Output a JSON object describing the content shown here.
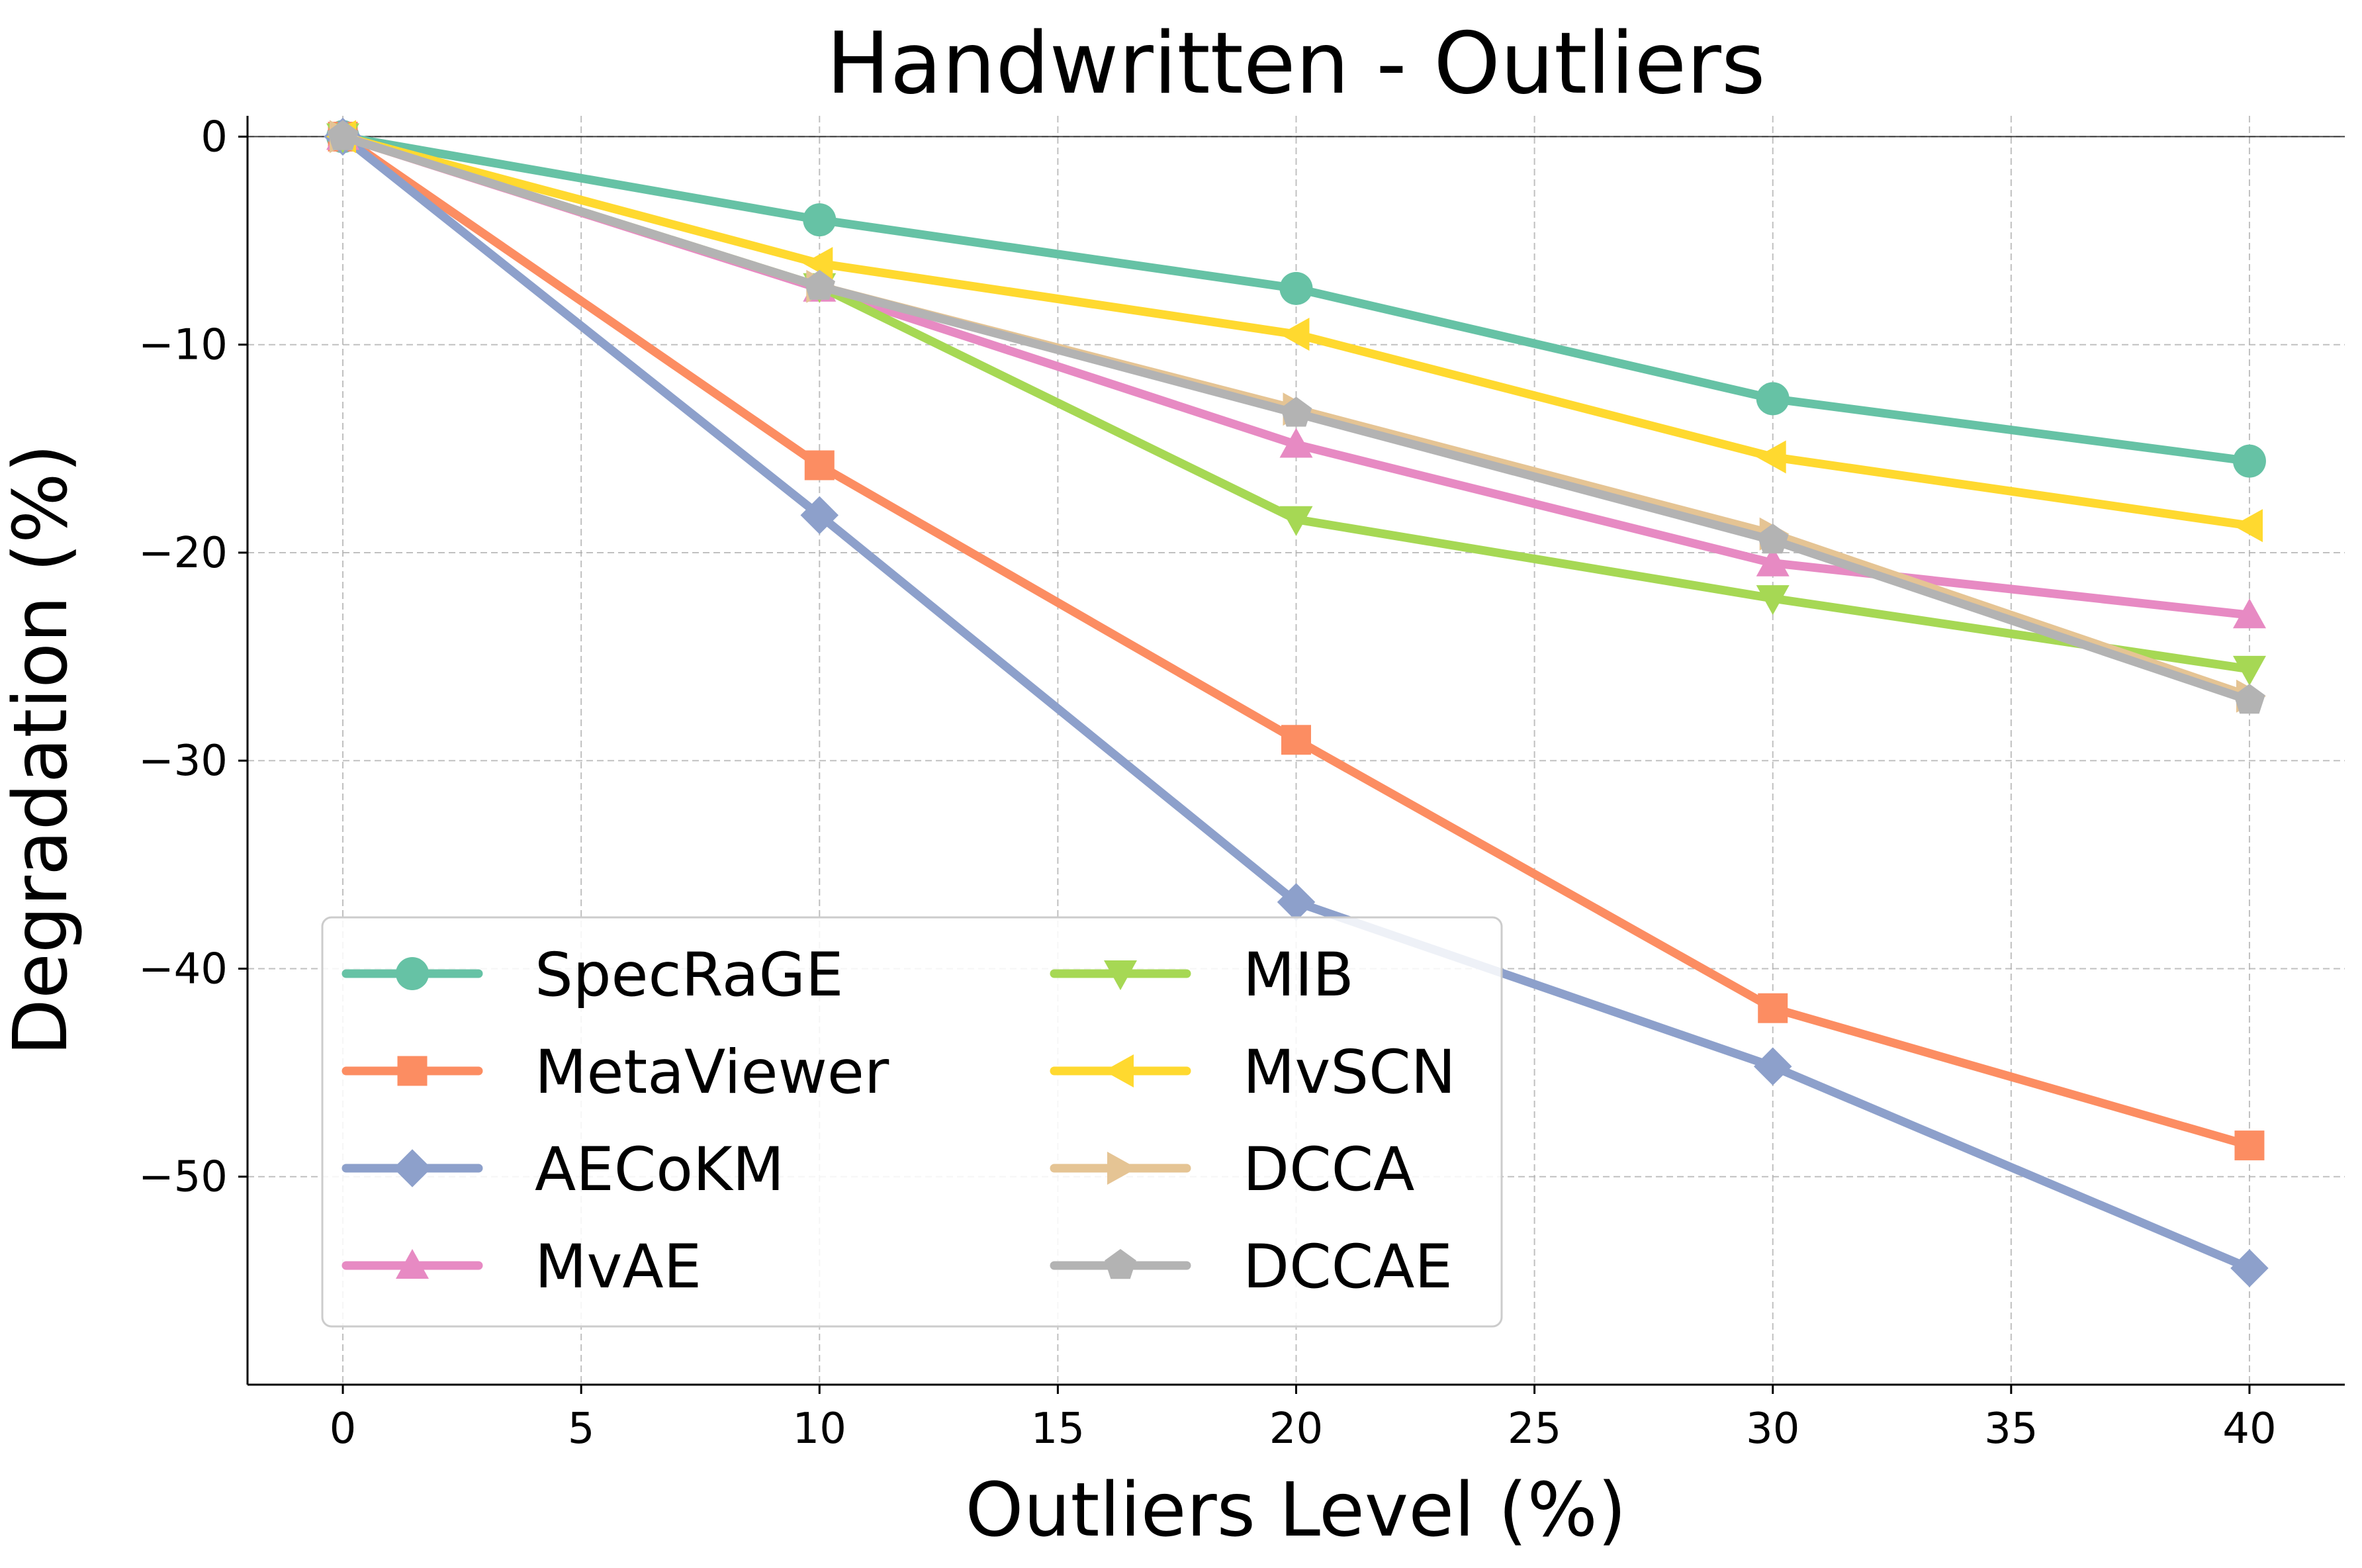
{
  "chart_data": {
    "type": "line",
    "title": "Handwritten - Outliers",
    "xlabel": "Outliers Level (%)",
    "ylabel": "Degradation (%)",
    "x": [
      0,
      10,
      20,
      30,
      40
    ],
    "xlim": [
      -2,
      42
    ],
    "ylim": [
      -60,
      1
    ],
    "xticks": [
      0,
      5,
      10,
      15,
      20,
      25,
      30,
      35,
      40
    ],
    "yticks": [
      0,
      -10,
      -20,
      -30,
      -40,
      -50
    ],
    "xtick_labels": [
      "0",
      "5",
      "10",
      "15",
      "20",
      "25",
      "30",
      "35",
      "40"
    ],
    "ytick_labels": [
      "0",
      "−10",
      "−20",
      "−30",
      "−40",
      "−50"
    ],
    "grid": true,
    "legend_position": "lower-left",
    "series": [
      {
        "name": "SpecRaGE",
        "color": "#66c2a5",
        "marker": "circle",
        "values": [
          0,
          -4.0,
          -7.3,
          -12.6,
          -15.6
        ]
      },
      {
        "name": "MetaViewer",
        "color": "#fc8d62",
        "marker": "square",
        "values": [
          0,
          -15.8,
          -29.0,
          -41.9,
          -48.5
        ]
      },
      {
        "name": "AECoKM",
        "color": "#8da0cb",
        "marker": "diamond",
        "values": [
          0,
          -18.2,
          -36.8,
          -44.7,
          -54.4
        ]
      },
      {
        "name": "MvAE",
        "color": "#e78ac3",
        "marker": "triangle-up",
        "values": [
          0,
          -7.3,
          -14.8,
          -20.5,
          -23.0
        ]
      },
      {
        "name": "MIB",
        "color": "#a6d854",
        "marker": "triangle-down",
        "values": [
          0,
          -7.2,
          -18.4,
          -22.2,
          -25.6
        ]
      },
      {
        "name": "MvSCN",
        "color": "#ffd92f",
        "marker": "triangle-left",
        "values": [
          0,
          -6.1,
          -9.5,
          -15.4,
          -18.7
        ]
      },
      {
        "name": "DCCA",
        "color": "#e5c494",
        "marker": "triangle-right",
        "values": [
          0,
          -7.2,
          -13.1,
          -19.1,
          -26.9
        ]
      },
      {
        "name": "DCCAE",
        "color": "#b3b3b3",
        "marker": "pentagon",
        "values": [
          0,
          -7.2,
          -13.3,
          -19.4,
          -27.1
        ]
      }
    ]
  }
}
